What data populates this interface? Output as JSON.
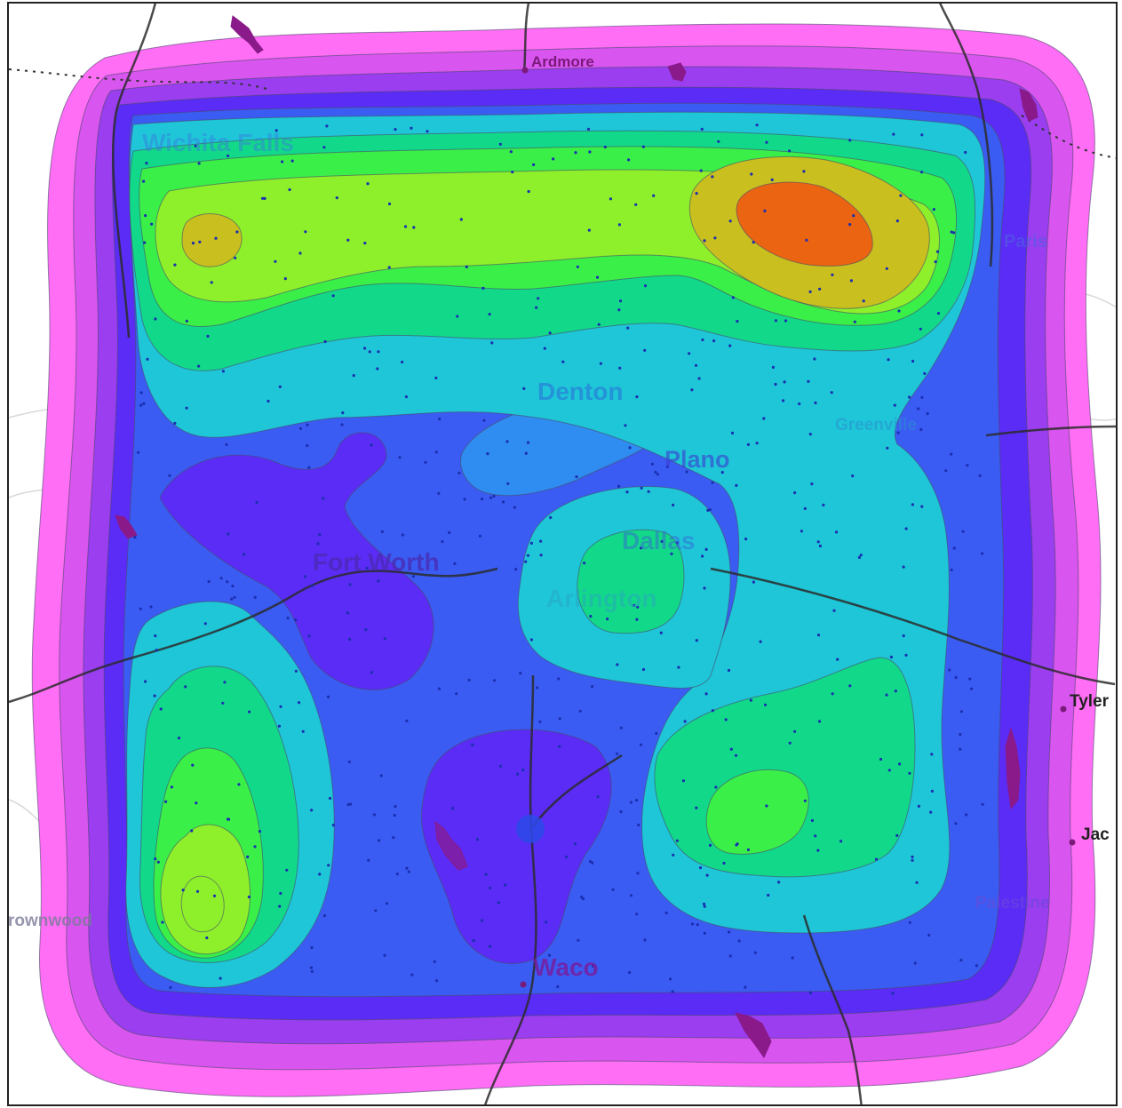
{
  "map": {
    "cities": [
      {
        "key": "ardmore",
        "label": "Ardmore"
      },
      {
        "key": "wichita_falls",
        "label": "Wichita Falls"
      },
      {
        "key": "paris",
        "label": "Paris"
      },
      {
        "key": "denton",
        "label": "Denton"
      },
      {
        "key": "greenville",
        "label": "Greenville"
      },
      {
        "key": "plano",
        "label": "Plano"
      },
      {
        "key": "dallas",
        "label": "Dallas"
      },
      {
        "key": "fort_worth",
        "label": "Fort Worth"
      },
      {
        "key": "arlington",
        "label": "Arlington"
      },
      {
        "key": "tyler",
        "label": "Tyler"
      },
      {
        "key": "jacksonville",
        "label": "Jac"
      },
      {
        "key": "brownwood",
        "label": "rownwood"
      },
      {
        "key": "palestine",
        "label": "Palestine"
      },
      {
        "key": "waco",
        "label": "Waco"
      }
    ],
    "legend_colors": {
      "level_0": "#ff6ef5",
      "level_1": "#d955f0",
      "level_2": "#9a3ef0",
      "level_3": "#5b2cf5",
      "level_4": "#3a5cf2",
      "level_5": "#2f8cf0",
      "level_6": "#1ec6d8",
      "level_7": "#12d98a",
      "level_8": "#3af048",
      "level_9": "#8ef02a",
      "level_10": "#c9bf1e",
      "level_11": "#ea6412"
    },
    "basemap": {
      "road_color": "#2b2b2b",
      "water_color": "#8a1a8a",
      "sample_point_color": "#1b2fb0"
    }
  }
}
